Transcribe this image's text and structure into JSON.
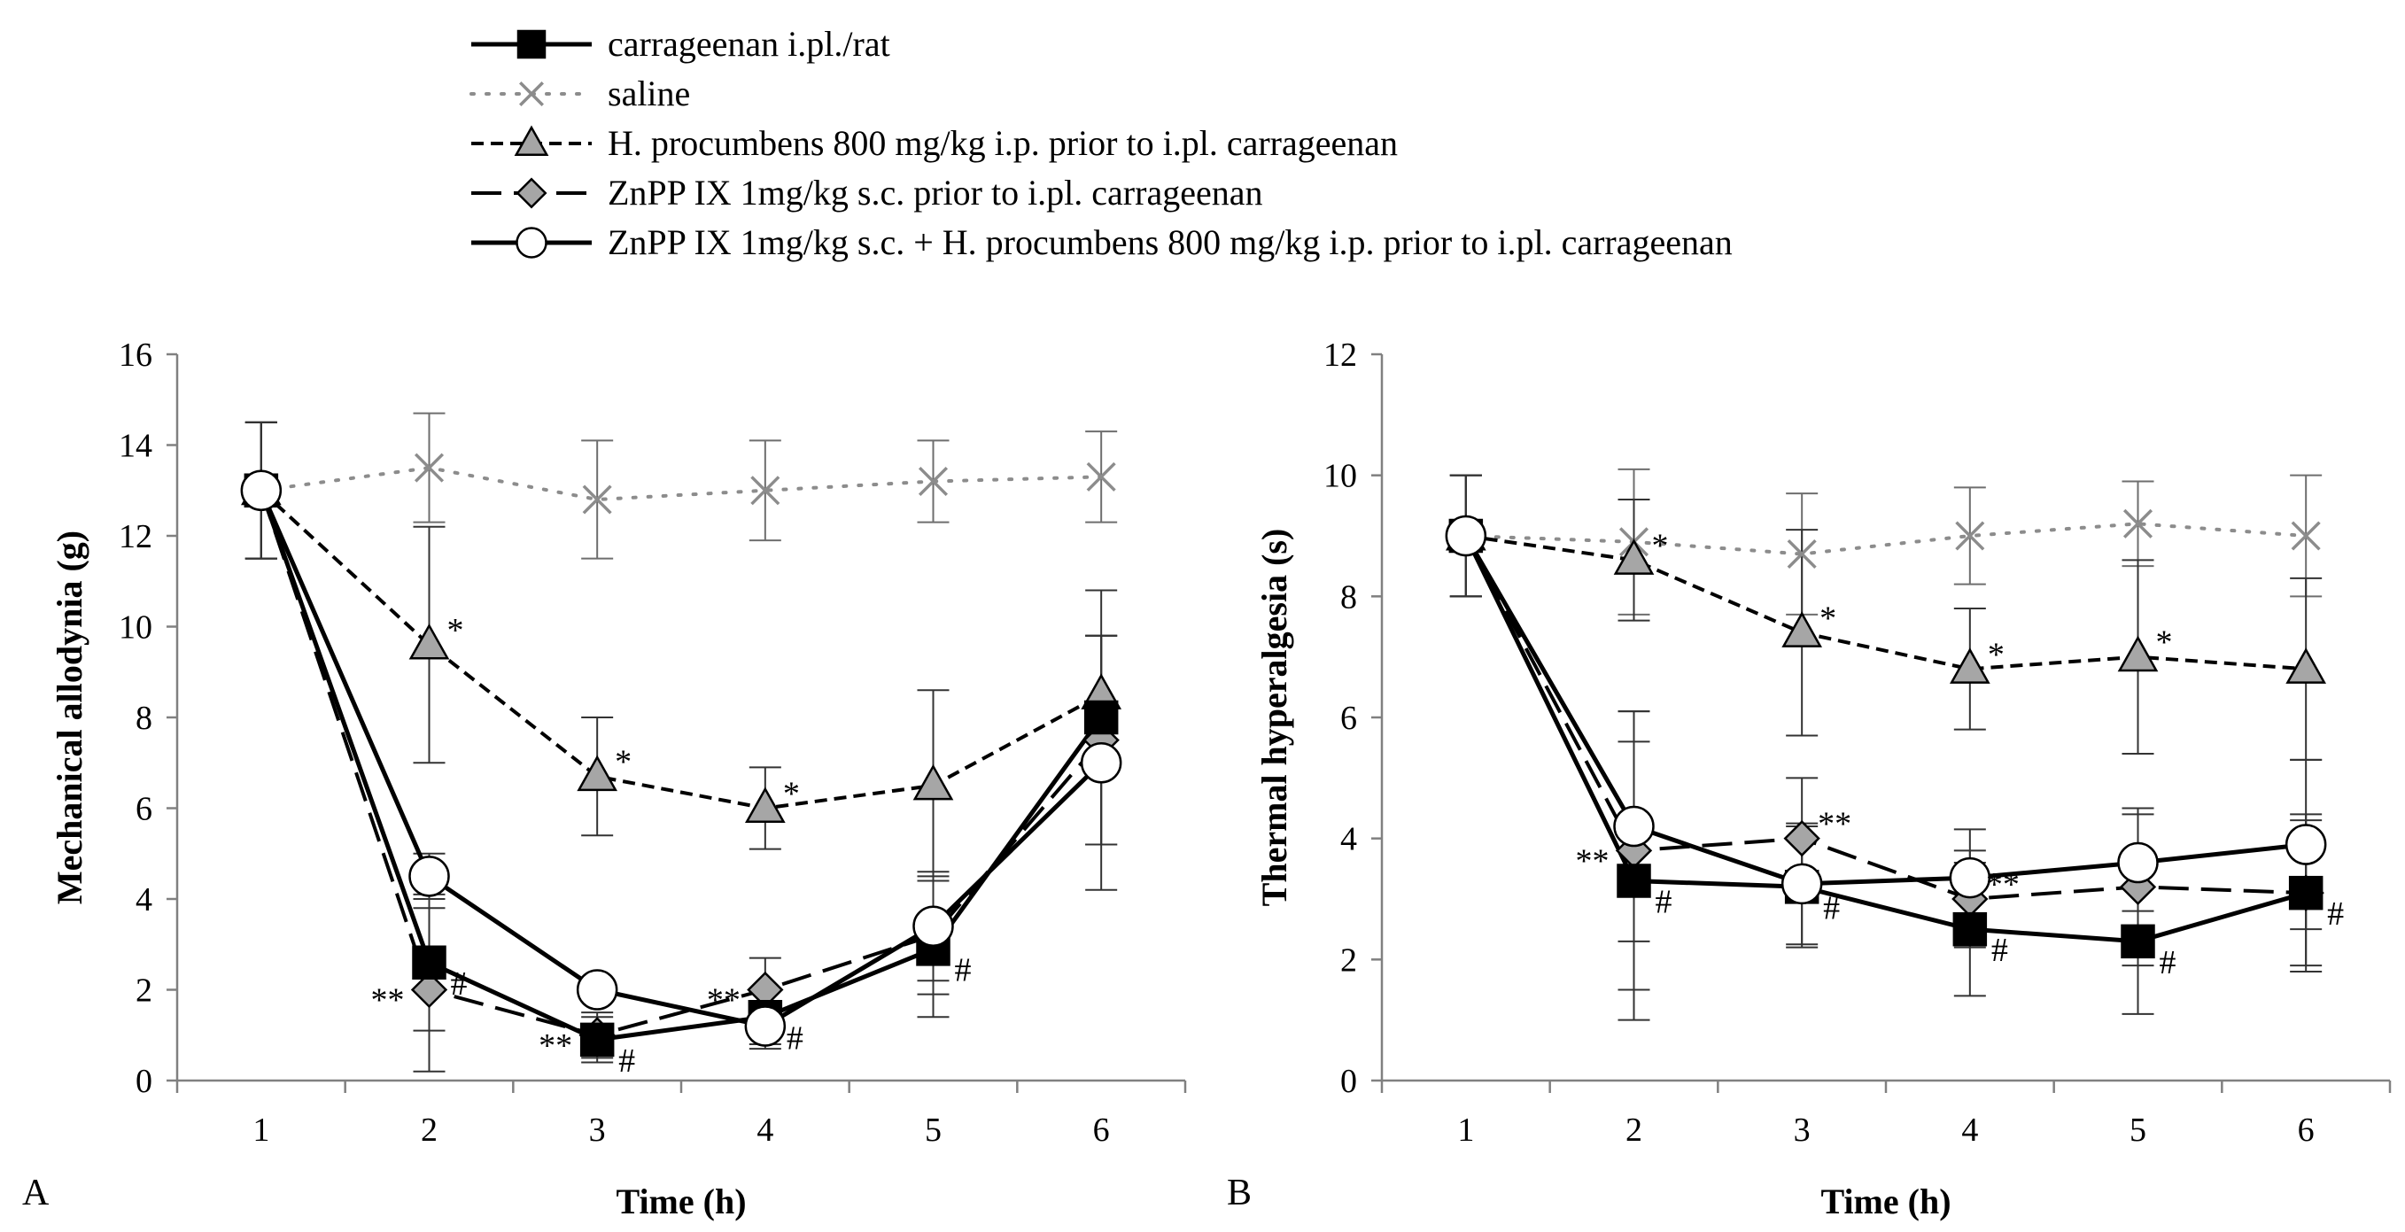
{
  "chart_data": [
    {
      "type": "line",
      "panel_label": "A",
      "xlabel": "Time (h)",
      "ylabel": "Mechanical allodynia (g)",
      "x": [
        1,
        2,
        3,
        4,
        5,
        6
      ],
      "xlim": [
        0.5,
        6.5
      ],
      "ylim": [
        0,
        16
      ],
      "yticks": [
        0,
        2,
        4,
        6,
        8,
        10,
        12,
        14,
        16
      ],
      "series": [
        {
          "key": "carr",
          "name": "carrageenan i.pl./rat",
          "values": [
            13,
            2.6,
            0.9,
            1.4,
            2.9,
            8.0
          ],
          "errors": [
            1.5,
            1.5,
            0.5,
            0.6,
            1.5,
            2.8
          ]
        },
        {
          "key": "saline",
          "name": "saline",
          "values": [
            13,
            13.5,
            12.8,
            13.0,
            13.2,
            13.3
          ],
          "errors": [
            1.5,
            1.2,
            1.3,
            1.1,
            0.9,
            1.0
          ]
        },
        {
          "key": "hp",
          "name": "H. procumbens 800 mg/kg i.p. prior to i.pl. carrageenan",
          "values": [
            13,
            9.6,
            6.7,
            6.0,
            6.5,
            8.5
          ],
          "errors": [
            1.5,
            2.6,
            1.3,
            0.9,
            2.1,
            1.3
          ]
        },
        {
          "key": "znpp",
          "name": "ZnPP IX 1mg/kg s.c. prior to i.pl. carrageenan",
          "values": [
            13,
            2.0,
            1.0,
            2.0,
            3.2,
            7.5
          ],
          "errors": [
            1.5,
            1.8,
            0.5,
            0.7,
            1.3,
            2.3
          ]
        },
        {
          "key": "combo",
          "name": "ZnPP IX 1mg/kg s.c. + H. procumbens 800 mg/kg i.p. prior to i.pl. carrageenan",
          "values": [
            13,
            4.5,
            2.0,
            1.2,
            3.4,
            7.0
          ],
          "errors": [
            1.5,
            0.5,
            0.2,
            0.5,
            1.2,
            2.8
          ]
        }
      ],
      "annotations": [
        {
          "series": "hp",
          "x": 2,
          "text": "*"
        },
        {
          "series": "hp",
          "x": 3,
          "text": "*"
        },
        {
          "series": "hp",
          "x": 4,
          "text": "*"
        },
        {
          "series": "znpp",
          "x": 2,
          "text": "**"
        },
        {
          "series": "znpp",
          "x": 3,
          "text": "**"
        },
        {
          "series": "znpp",
          "x": 4,
          "text": "**"
        },
        {
          "series": "carr",
          "x": 2,
          "text": "#"
        },
        {
          "series": "carr",
          "x": 3,
          "text": "#"
        },
        {
          "series": "carr",
          "x": 4,
          "text": "#"
        },
        {
          "series": "carr",
          "x": 5,
          "text": "#"
        }
      ]
    },
    {
      "type": "line",
      "panel_label": "B",
      "xlabel": "Time (h)",
      "ylabel": "Thermal hyperalgesia (s)",
      "x": [
        1,
        2,
        3,
        4,
        5,
        6
      ],
      "xlim": [
        0.5,
        6.5
      ],
      "ylim": [
        0,
        12
      ],
      "yticks": [
        0,
        2,
        4,
        6,
        8,
        10,
        12
      ],
      "series": [
        {
          "key": "carr",
          "name": "carrageenan i.pl./rat",
          "values": [
            9.0,
            3.3,
            3.2,
            2.5,
            2.3,
            3.1
          ],
          "errors": [
            1.0,
            2.3,
            1.0,
            1.1,
            1.2,
            1.2
          ]
        },
        {
          "key": "saline",
          "name": "saline",
          "values": [
            9.0,
            8.9,
            8.7,
            9.0,
            9.2,
            9.0
          ],
          "errors": [
            1.0,
            1.2,
            1.0,
            0.8,
            0.7,
            1.0
          ]
        },
        {
          "key": "hp",
          "name": "H. procumbens 800 mg/kg i.p. prior to i.pl. carrageenan",
          "values": [
            9.0,
            8.6,
            7.4,
            6.8,
            7.0,
            6.8
          ],
          "errors": [
            1.0,
            1.0,
            1.7,
            1.0,
            1.6,
            1.5
          ]
        },
        {
          "key": "znpp",
          "name": "ZnPP IX 1mg/kg s.c. prior to i.pl. carrageenan",
          "values": [
            9.0,
            3.8,
            4.0,
            3.0,
            3.2,
            3.1
          ],
          "errors": [
            1.0,
            2.3,
            1.0,
            0.8,
            1.3,
            1.3
          ]
        },
        {
          "key": "combo",
          "name": "ZnPP IX 1mg/kg s.c. + H. procumbens 800 mg/kg i.p. prior to i.pl. carrageenan",
          "values": [
            9.0,
            4.2,
            3.25,
            3.35,
            3.6,
            3.9
          ],
          "errors": [
            1.0,
            1.9,
            1.0,
            0.8,
            0.8,
            1.4
          ]
        }
      ],
      "annotations": [
        {
          "series": "hp",
          "x": 2,
          "text": "*"
        },
        {
          "series": "hp",
          "x": 3,
          "text": "*"
        },
        {
          "series": "hp",
          "x": 4,
          "text": "*"
        },
        {
          "series": "hp",
          "x": 5,
          "text": "*"
        },
        {
          "series": "znpp",
          "x": 2,
          "text": "**"
        },
        {
          "series": "znpp",
          "x": 3,
          "text": "**"
        },
        {
          "series": "znpp",
          "x": 4,
          "text": "**"
        },
        {
          "series": "carr",
          "x": 2,
          "text": "#"
        },
        {
          "series": "carr",
          "x": 3,
          "text": "#"
        },
        {
          "series": "carr",
          "x": 4,
          "text": "#"
        },
        {
          "series": "carr",
          "x": 5,
          "text": "#"
        },
        {
          "series": "carr",
          "x": 6,
          "text": "#"
        }
      ]
    }
  ],
  "legend": [
    {
      "key": "carr",
      "label": "carrageenan i.pl./rat"
    },
    {
      "key": "saline",
      "label": "saline"
    },
    {
      "key": "hp",
      "label": "H. procumbens 800 mg/kg i.p. prior to i.pl. carrageenan"
    },
    {
      "key": "znpp",
      "label": "ZnPP IX 1mg/kg s.c. prior to i.pl. carrageenan"
    },
    {
      "key": "combo",
      "label": "ZnPP IX 1mg/kg s.c. + H. procumbens 800 mg/kg i.p. prior to i.pl. carrageenan"
    }
  ],
  "colors": {
    "axis": "#808080",
    "saline": "#8c8c8c",
    "hp_fill": "#a6a6a6",
    "znpp_fill": "#a6a6a6",
    "carr_fill": "#000000",
    "combo_fill": "#ffffff"
  }
}
